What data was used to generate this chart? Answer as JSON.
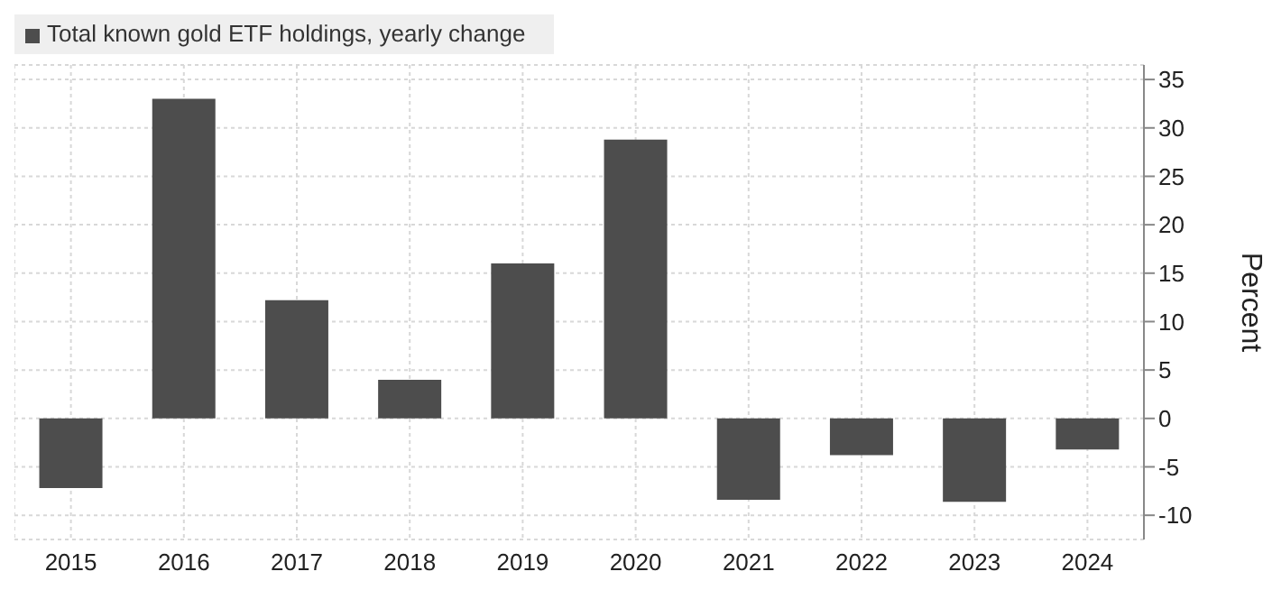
{
  "chart_data": {
    "type": "bar",
    "categories": [
      "2015",
      "2016",
      "2017",
      "2018",
      "2019",
      "2020",
      "2021",
      "2022",
      "2023",
      "2024"
    ],
    "series": [
      {
        "name": "Total known gold ETF holdings, yearly change",
        "color": "#4d4d4d",
        "values": [
          -7.2,
          33.0,
          12.2,
          4.0,
          16.0,
          28.8,
          -8.4,
          -3.8,
          -8.6,
          -3.2
        ]
      }
    ],
    "ylabel": "Percent",
    "ylim": [
      -12.5,
      36.5
    ],
    "yticks": [
      -10,
      -5,
      0,
      5,
      10,
      15,
      20,
      25,
      30,
      35
    ],
    "grid": true,
    "legend": "top left"
  }
}
